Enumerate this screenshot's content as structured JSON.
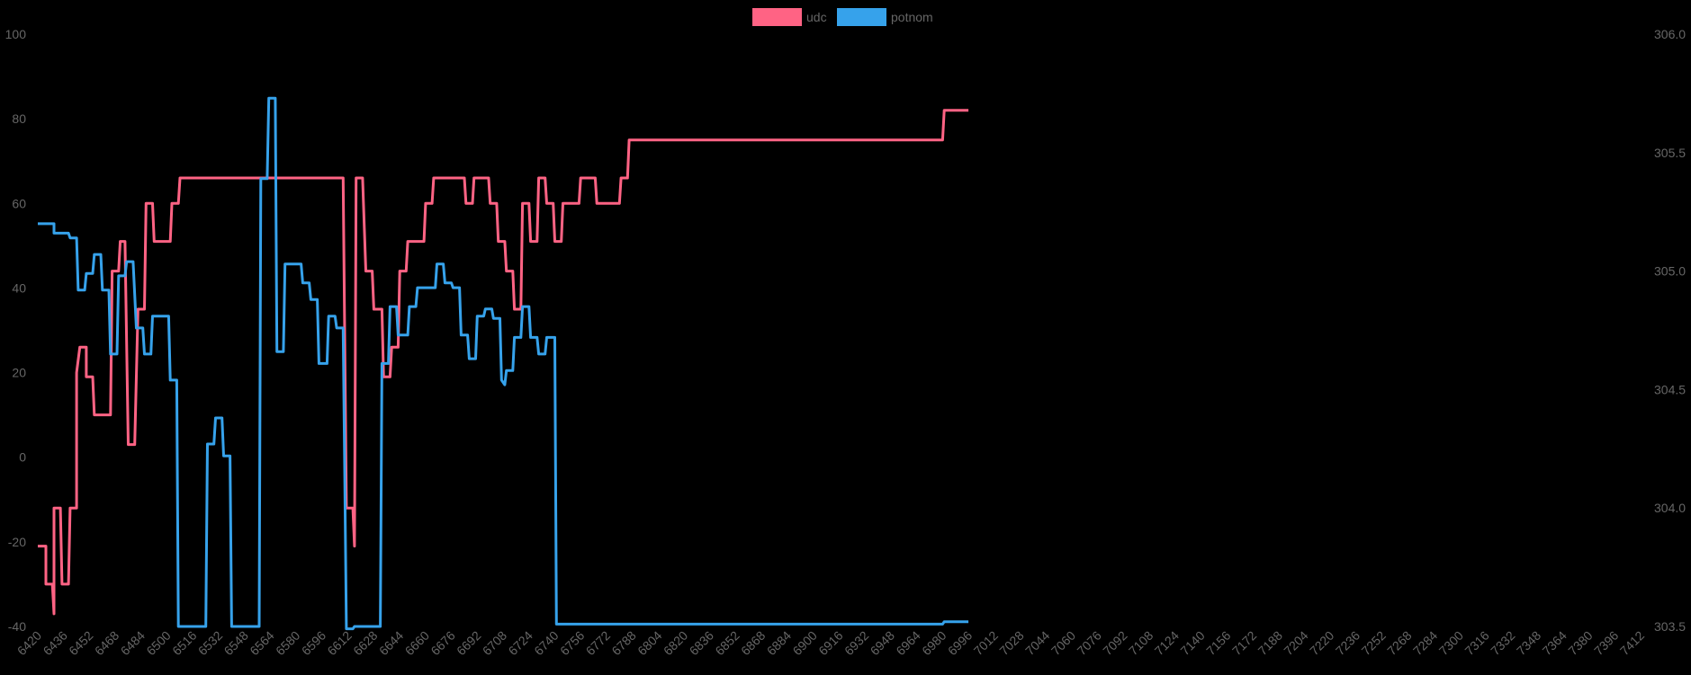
{
  "chart_data": {
    "type": "line",
    "x_ticks": [
      "6420",
      "6436",
      "6452",
      "6468",
      "6484",
      "6500",
      "6516",
      "6532",
      "6548",
      "6564",
      "6580",
      "6596",
      "6612",
      "6628",
      "6644",
      "6660",
      "6676",
      "6692",
      "6708",
      "6724",
      "6740",
      "6756",
      "6772",
      "6788",
      "6804",
      "6820",
      "6836",
      "6852",
      "6868",
      "6884",
      "6900",
      "6916",
      "6932",
      "6948",
      "6964",
      "6980",
      "6996",
      "7012",
      "7028",
      "7044",
      "7060",
      "7076",
      "7092",
      "7108",
      "7124",
      "7140",
      "7156",
      "7172",
      "7188",
      "7204",
      "7220",
      "7236",
      "7252",
      "7268",
      "7284",
      "7300",
      "7316",
      "7332",
      "7348",
      "7364",
      "7380",
      "7396",
      "7412"
    ],
    "y_left": {
      "min": -40,
      "max": 100,
      "ticks": [
        "-40",
        "-20",
        "0",
        "20",
        "40",
        "60",
        "80",
        "100"
      ]
    },
    "y_right": {
      "min": 303.5,
      "max": 306.0,
      "ticks": [
        "303.5",
        "304.0",
        "304.5",
        "305.0",
        "305.5",
        "306.0"
      ]
    },
    "legend_position": "top-center",
    "series": [
      {
        "name": "udc",
        "color": "#ff6384",
        "axis": "left",
        "points": [
          [
            6420,
            -21
          ],
          [
            6425,
            -21
          ],
          [
            6425,
            -30
          ],
          [
            6429,
            -30
          ],
          [
            6430,
            -37
          ],
          [
            6430,
            -12
          ],
          [
            6434,
            -12
          ],
          [
            6435,
            -30
          ],
          [
            6439,
            -30
          ],
          [
            6440,
            -12
          ],
          [
            6444,
            -12
          ],
          [
            6444,
            20
          ],
          [
            6446,
            26
          ],
          [
            6450,
            26
          ],
          [
            6450,
            19
          ],
          [
            6454,
            19
          ],
          [
            6455,
            10
          ],
          [
            6465,
            10
          ],
          [
            6466,
            44
          ],
          [
            6470,
            44
          ],
          [
            6471,
            51
          ],
          [
            6474,
            51
          ],
          [
            6476,
            3
          ],
          [
            6480,
            3
          ],
          [
            6482,
            35
          ],
          [
            6486,
            35
          ],
          [
            6487,
            60
          ],
          [
            6491,
            60
          ],
          [
            6492,
            51
          ],
          [
            6502,
            51
          ],
          [
            6503,
            60
          ],
          [
            6507,
            60
          ],
          [
            6508,
            66
          ],
          [
            6609,
            66
          ],
          [
            6611,
            -12
          ],
          [
            6615,
            -12
          ],
          [
            6616,
            -21
          ],
          [
            6617,
            66
          ],
          [
            6621,
            66
          ],
          [
            6623,
            44
          ],
          [
            6627,
            44
          ],
          [
            6628,
            35
          ],
          [
            6633,
            35
          ],
          [
            6634,
            19
          ],
          [
            6638,
            19
          ],
          [
            6639,
            26
          ],
          [
            6643,
            26
          ],
          [
            6644,
            44
          ],
          [
            6648,
            44
          ],
          [
            6649,
            51
          ],
          [
            6659,
            51
          ],
          [
            6660,
            60
          ],
          [
            6664,
            60
          ],
          [
            6665,
            66
          ],
          [
            6684,
            66
          ],
          [
            6685,
            60
          ],
          [
            6689,
            60
          ],
          [
            6690,
            66
          ],
          [
            6699,
            66
          ],
          [
            6700,
            60
          ],
          [
            6704,
            60
          ],
          [
            6705,
            51
          ],
          [
            6709,
            51
          ],
          [
            6710,
            44
          ],
          [
            6714,
            44
          ],
          [
            6715,
            35
          ],
          [
            6719,
            35
          ],
          [
            6720,
            60
          ],
          [
            6724,
            60
          ],
          [
            6725,
            51
          ],
          [
            6729,
            51
          ],
          [
            6730,
            66
          ],
          [
            6734,
            66
          ],
          [
            6735,
            60
          ],
          [
            6739,
            60
          ],
          [
            6740,
            51
          ],
          [
            6744,
            51
          ],
          [
            6745,
            60
          ],
          [
            6755,
            60
          ],
          [
            6756,
            66
          ],
          [
            6765,
            66
          ],
          [
            6766,
            60
          ],
          [
            6780,
            60
          ],
          [
            6781,
            66
          ],
          [
            6785,
            66
          ],
          [
            6786,
            75
          ],
          [
            6980,
            75
          ],
          [
            6981,
            82
          ],
          [
            6996,
            82
          ]
        ]
      },
      {
        "name": "potnom",
        "color": "#36a2eb",
        "axis": "right",
        "points": [
          [
            6420,
            305.2
          ],
          [
            6430,
            305.2
          ],
          [
            6430,
            305.16
          ],
          [
            6439,
            305.16
          ],
          [
            6440,
            305.14
          ],
          [
            6444,
            305.14
          ],
          [
            6445,
            304.92
          ],
          [
            6449,
            304.92
          ],
          [
            6450,
            304.99
          ],
          [
            6454,
            304.99
          ],
          [
            6455,
            305.07
          ],
          [
            6459,
            305.07
          ],
          [
            6460,
            304.92
          ],
          [
            6464,
            304.92
          ],
          [
            6465,
            304.65
          ],
          [
            6469,
            304.65
          ],
          [
            6470,
            304.98
          ],
          [
            6474,
            304.98
          ],
          [
            6475,
            305.04
          ],
          [
            6479,
            305.04
          ],
          [
            6481,
            304.76
          ],
          [
            6485,
            304.76
          ],
          [
            6486,
            304.65
          ],
          [
            6490,
            304.65
          ],
          [
            6491,
            304.81
          ],
          [
            6501,
            304.81
          ],
          [
            6502,
            304.54
          ],
          [
            6506,
            304.54
          ],
          [
            6507,
            303.5
          ],
          [
            6524,
            303.5
          ],
          [
            6525,
            304.27
          ],
          [
            6529,
            304.27
          ],
          [
            6530,
            304.38
          ],
          [
            6534,
            304.38
          ],
          [
            6535,
            304.22
          ],
          [
            6539,
            304.22
          ],
          [
            6540,
            303.5
          ],
          [
            6557,
            303.5
          ],
          [
            6558,
            305.39
          ],
          [
            6562,
            305.39
          ],
          [
            6563,
            305.73
          ],
          [
            6567,
            305.73
          ],
          [
            6568,
            304.66
          ],
          [
            6572,
            304.66
          ],
          [
            6573,
            305.03
          ],
          [
            6583,
            305.03
          ],
          [
            6584,
            304.95
          ],
          [
            6588,
            304.95
          ],
          [
            6589,
            304.88
          ],
          [
            6593,
            304.88
          ],
          [
            6594,
            304.61
          ],
          [
            6599,
            304.61
          ],
          [
            6600,
            304.81
          ],
          [
            6604,
            304.81
          ],
          [
            6605,
            304.76
          ],
          [
            6609,
            304.76
          ],
          [
            6611,
            303.49
          ],
          [
            6615,
            303.49
          ],
          [
            6616,
            303.5
          ],
          [
            6632,
            303.5
          ],
          [
            6633,
            304.61
          ],
          [
            6637,
            304.61
          ],
          [
            6638,
            304.85
          ],
          [
            6642,
            304.85
          ],
          [
            6643,
            304.73
          ],
          [
            6649,
            304.73
          ],
          [
            6650,
            304.85
          ],
          [
            6654,
            304.85
          ],
          [
            6655,
            304.93
          ],
          [
            6666,
            304.93
          ],
          [
            6667,
            305.03
          ],
          [
            6671,
            305.03
          ],
          [
            6672,
            304.95
          ],
          [
            6676,
            304.95
          ],
          [
            6677,
            304.93
          ],
          [
            6681,
            304.93
          ],
          [
            6682,
            304.73
          ],
          [
            6686,
            304.73
          ],
          [
            6687,
            304.63
          ],
          [
            6691,
            304.63
          ],
          [
            6692,
            304.81
          ],
          [
            6696,
            304.81
          ],
          [
            6697,
            304.84
          ],
          [
            6701,
            304.84
          ],
          [
            6702,
            304.8
          ],
          [
            6706,
            304.8
          ],
          [
            6707,
            304.54
          ],
          [
            6709,
            304.52
          ],
          [
            6710,
            304.58
          ],
          [
            6714,
            304.58
          ],
          [
            6715,
            304.72
          ],
          [
            6719,
            304.72
          ],
          [
            6720,
            304.85
          ],
          [
            6724,
            304.85
          ],
          [
            6725,
            304.72
          ],
          [
            6729,
            304.72
          ],
          [
            6730,
            304.65
          ],
          [
            6734,
            304.65
          ],
          [
            6735,
            304.72
          ],
          [
            6740,
            304.72
          ],
          [
            6741,
            303.51
          ],
          [
            6980,
            303.51
          ],
          [
            6981,
            303.52
          ],
          [
            6996,
            303.52
          ]
        ]
      }
    ]
  }
}
